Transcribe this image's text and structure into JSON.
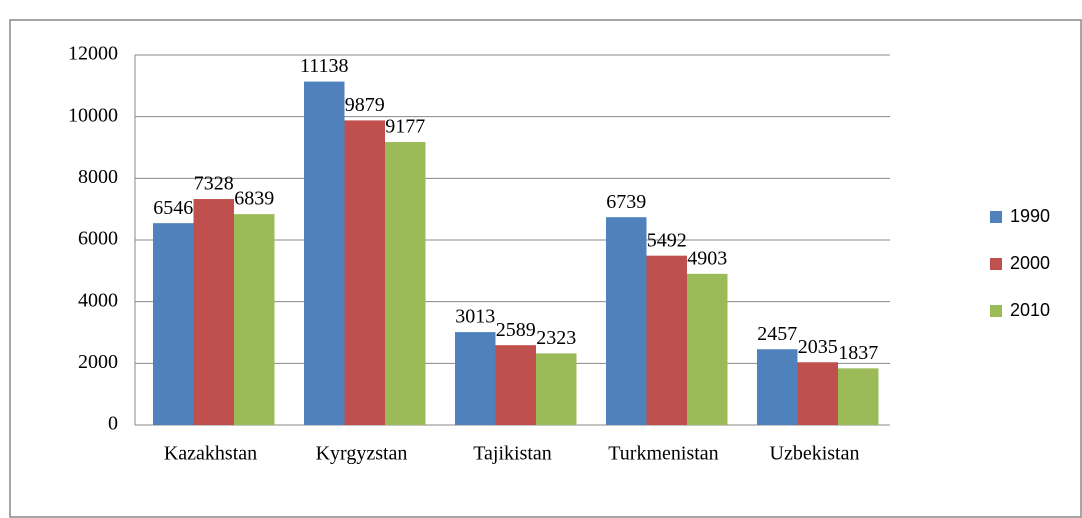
{
  "chart_data": {
    "type": "bar",
    "categories": [
      "Kazakhstan",
      "Kyrgyzstan",
      "Tajikistan",
      "Turkmenistan",
      "Uzbekistan"
    ],
    "series": [
      {
        "name": "1990",
        "color": "#4f81bd",
        "values": [
          6546,
          11138,
          3013,
          6739,
          2457
        ]
      },
      {
        "name": "2000",
        "color": "#c0504d",
        "values": [
          7328,
          9879,
          2589,
          5492,
          2035
        ]
      },
      {
        "name": "2010",
        "color": "#9bbb59",
        "values": [
          6839,
          9177,
          2323,
          4903,
          1837
        ]
      }
    ],
    "ylim": [
      0,
      12000
    ],
    "yticks": [
      0,
      2000,
      4000,
      6000,
      8000,
      10000,
      12000
    ],
    "grid": true,
    "legend": "right"
  }
}
